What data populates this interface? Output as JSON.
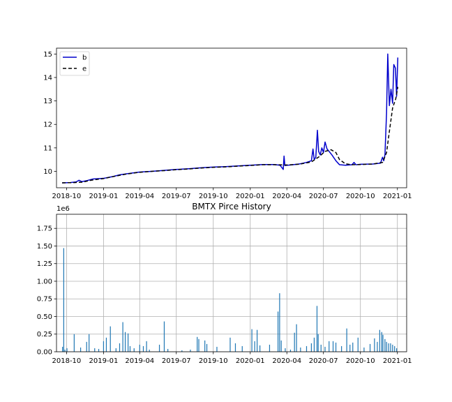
{
  "chart_data": [
    {
      "type": "line",
      "title": "",
      "xlabel": "",
      "ylabel": "",
      "x_ticks": [
        "2018-10",
        "2019-01",
        "2019-04",
        "2019-07",
        "2019-10",
        "2020-01",
        "2020-04",
        "2020-07",
        "2020-10",
        "2021-01"
      ],
      "y_ticks": [
        "10",
        "11",
        "12",
        "13",
        "14",
        "15"
      ],
      "ylim": [
        9.3,
        15.25
      ],
      "xlim": [
        "2018-09-06",
        "2021-01-24"
      ],
      "grid": false,
      "legend_position": "upper-left",
      "series": [
        {
          "name": "b",
          "color": "#0000cc",
          "style": "solid",
          "points": [
            [
              "2018-09-20",
              9.51
            ],
            [
              "2018-10-10",
              9.52
            ],
            [
              "2018-10-25",
              9.55
            ],
            [
              "2018-11-01",
              9.62
            ],
            [
              "2018-11-08",
              9.56
            ],
            [
              "2018-11-20",
              9.6
            ],
            [
              "2018-12-05",
              9.67
            ],
            [
              "2019-01-01",
              9.7
            ],
            [
              "2019-01-25",
              9.78
            ],
            [
              "2019-02-10",
              9.85
            ],
            [
              "2019-03-01",
              9.9
            ],
            [
              "2019-04-01",
              9.97
            ],
            [
              "2019-05-01",
              10.0
            ],
            [
              "2019-06-01",
              10.04
            ],
            [
              "2019-07-01",
              10.08
            ],
            [
              "2019-08-01",
              10.11
            ],
            [
              "2019-09-01",
              10.15
            ],
            [
              "2019-10-01",
              10.18
            ],
            [
              "2019-11-01",
              10.2
            ],
            [
              "2019-12-01",
              10.23
            ],
            [
              "2020-01-01",
              10.26
            ],
            [
              "2020-02-01",
              10.29
            ],
            [
              "2020-03-01",
              10.29
            ],
            [
              "2020-03-15",
              10.26
            ],
            [
              "2020-03-20",
              10.15
            ],
            [
              "2020-03-23",
              10.08
            ],
            [
              "2020-03-25",
              10.65
            ],
            [
              "2020-03-27",
              10.25
            ],
            [
              "2020-04-10",
              10.27
            ],
            [
              "2020-05-01",
              10.31
            ],
            [
              "2020-05-20",
              10.38
            ],
            [
              "2020-06-01",
              10.45
            ],
            [
              "2020-06-05",
              10.95
            ],
            [
              "2020-06-08",
              10.5
            ],
            [
              "2020-06-12",
              10.6
            ],
            [
              "2020-06-16",
              11.75
            ],
            [
              "2020-06-19",
              10.85
            ],
            [
              "2020-06-23",
              10.7
            ],
            [
              "2020-06-27",
              11.0
            ],
            [
              "2020-07-01",
              10.8
            ],
            [
              "2020-07-05",
              11.25
            ],
            [
              "2020-07-10",
              10.95
            ],
            [
              "2020-07-15",
              10.85
            ],
            [
              "2020-07-22",
              10.7
            ],
            [
              "2020-08-01",
              10.45
            ],
            [
              "2020-08-10",
              10.28
            ],
            [
              "2020-08-25",
              10.26
            ],
            [
              "2020-09-10",
              10.28
            ],
            [
              "2020-09-15",
              10.38
            ],
            [
              "2020-09-20",
              10.28
            ],
            [
              "2020-10-01",
              10.3
            ],
            [
              "2020-11-01",
              10.31
            ],
            [
              "2020-11-20",
              10.35
            ],
            [
              "2020-11-25",
              10.6
            ],
            [
              "2020-11-28",
              10.45
            ],
            [
              "2020-12-01",
              10.7
            ],
            [
              "2020-12-05",
              12.5
            ],
            [
              "2020-12-08",
              15.0
            ],
            [
              "2020-12-12",
              12.8
            ],
            [
              "2020-12-16",
              13.5
            ],
            [
              "2020-12-20",
              12.9
            ],
            [
              "2020-12-23",
              14.55
            ],
            [
              "2020-12-27",
              14.4
            ],
            [
              "2020-12-30",
              13.2
            ],
            [
              "2021-01-02",
              14.85
            ]
          ]
        },
        {
          "name": "e",
          "color": "#000000",
          "style": "dashed",
          "points": [
            [
              "2018-09-20",
              9.51
            ],
            [
              "2018-10-20",
              9.52
            ],
            [
              "2018-11-10",
              9.54
            ],
            [
              "2018-12-01",
              9.62
            ],
            [
              "2019-01-01",
              9.69
            ],
            [
              "2019-02-01",
              9.8
            ],
            [
              "2019-03-01",
              9.89
            ],
            [
              "2019-04-01",
              9.96
            ],
            [
              "2019-05-01",
              10.0
            ],
            [
              "2019-06-01",
              10.03
            ],
            [
              "2019-07-01",
              10.07
            ],
            [
              "2019-08-01",
              10.1
            ],
            [
              "2019-09-01",
              10.14
            ],
            [
              "2019-10-01",
              10.17
            ],
            [
              "2019-11-01",
              10.19
            ],
            [
              "2019-12-01",
              10.22
            ],
            [
              "2020-01-01",
              10.25
            ],
            [
              "2020-02-01",
              10.28
            ],
            [
              "2020-03-01",
              10.28
            ],
            [
              "2020-04-01",
              10.27
            ],
            [
              "2020-05-01",
              10.3
            ],
            [
              "2020-06-01",
              10.4
            ],
            [
              "2020-06-20",
              10.62
            ],
            [
              "2020-07-05",
              10.85
            ],
            [
              "2020-07-20",
              10.92
            ],
            [
              "2020-08-01",
              10.8
            ],
            [
              "2020-08-10",
              10.5
            ],
            [
              "2020-08-25",
              10.32
            ],
            [
              "2020-09-10",
              10.28
            ],
            [
              "2020-10-01",
              10.29
            ],
            [
              "2020-11-01",
              10.31
            ],
            [
              "2020-11-25",
              10.38
            ],
            [
              "2020-12-05",
              10.8
            ],
            [
              "2020-12-12",
              11.7
            ],
            [
              "2020-12-20",
              12.7
            ],
            [
              "2020-12-28",
              13.1
            ],
            [
              "2021-01-02",
              13.6
            ]
          ]
        }
      ]
    },
    {
      "type": "bar",
      "title": "BMTX Pirce History",
      "xlabel": "",
      "ylabel": "",
      "y_scale_label": "1e6",
      "x_ticks": [
        "2018-10",
        "2019-01",
        "2019-04",
        "2019-07",
        "2019-10",
        "2020-01",
        "2020-04",
        "2020-07",
        "2020-10",
        "2021-01"
      ],
      "y_ticks": [
        "0.00",
        "0.25",
        "0.50",
        "0.75",
        "1.00",
        "1.25",
        "1.50",
        "1.75"
      ],
      "ylim": [
        0,
        1.95
      ],
      "xlim": [
        "2018-09-06",
        "2021-01-24"
      ],
      "grid": true,
      "bar_color": "#1f77b4",
      "points": [
        [
          "2018-09-21",
          0.07
        ],
        [
          "2018-09-24",
          1.47
        ],
        [
          "2018-09-27",
          0.03
        ],
        [
          "2018-10-02",
          0.05
        ],
        [
          "2018-10-20",
          0.25
        ],
        [
          "2018-11-05",
          0.06
        ],
        [
          "2018-11-20",
          0.14
        ],
        [
          "2018-11-26",
          0.25
        ],
        [
          "2018-12-10",
          0.05
        ],
        [
          "2018-12-20",
          0.04
        ],
        [
          "2019-01-01",
          0.15
        ],
        [
          "2019-01-08",
          0.2
        ],
        [
          "2019-01-18",
          0.36
        ],
        [
          "2019-02-01",
          0.05
        ],
        [
          "2019-02-10",
          0.12
        ],
        [
          "2019-02-18",
          0.42
        ],
        [
          "2019-02-24",
          0.28
        ],
        [
          "2019-03-03",
          0.26
        ],
        [
          "2019-03-08",
          0.08
        ],
        [
          "2019-03-18",
          0.05
        ],
        [
          "2019-04-01",
          0.1
        ],
        [
          "2019-04-10",
          0.08
        ],
        [
          "2019-04-18",
          0.15
        ],
        [
          "2019-04-25",
          0.03
        ],
        [
          "2019-05-20",
          0.1
        ],
        [
          "2019-06-01",
          0.43
        ],
        [
          "2019-06-10",
          0.04
        ],
        [
          "2019-07-15",
          0.02
        ],
        [
          "2019-08-05",
          0.03
        ],
        [
          "2019-08-22",
          0.21
        ],
        [
          "2019-08-26",
          0.18
        ],
        [
          "2019-09-10",
          0.16
        ],
        [
          "2019-09-15",
          0.11
        ],
        [
          "2019-10-10",
          0.07
        ],
        [
          "2019-11-12",
          0.2
        ],
        [
          "2019-11-25",
          0.12
        ],
        [
          "2019-12-12",
          0.08
        ],
        [
          "2020-01-05",
          0.32
        ],
        [
          "2020-01-12",
          0.15
        ],
        [
          "2020-01-18",
          0.31
        ],
        [
          "2020-01-25",
          0.09
        ],
        [
          "2020-02-18",
          0.1
        ],
        [
          "2020-03-10",
          0.57
        ],
        [
          "2020-03-14",
          0.83
        ],
        [
          "2020-03-18",
          0.16
        ],
        [
          "2020-03-28",
          0.05
        ],
        [
          "2020-04-10",
          0.03
        ],
        [
          "2020-04-20",
          0.27
        ],
        [
          "2020-04-25",
          0.39
        ],
        [
          "2020-05-05",
          0.06
        ],
        [
          "2020-05-20",
          0.08
        ],
        [
          "2020-06-01",
          0.12
        ],
        [
          "2020-06-08",
          0.2
        ],
        [
          "2020-06-15",
          0.65
        ],
        [
          "2020-06-18",
          0.25
        ],
        [
          "2020-06-25",
          0.1
        ],
        [
          "2020-07-05",
          0.07
        ],
        [
          "2020-07-15",
          0.15
        ],
        [
          "2020-07-25",
          0.15
        ],
        [
          "2020-08-01",
          0.13
        ],
        [
          "2020-08-15",
          0.08
        ],
        [
          "2020-08-28",
          0.33
        ],
        [
          "2020-09-05",
          0.1
        ],
        [
          "2020-09-12",
          0.13
        ],
        [
          "2020-09-25",
          0.2
        ],
        [
          "2020-10-10",
          0.06
        ],
        [
          "2020-10-25",
          0.11
        ],
        [
          "2020-11-05",
          0.19
        ],
        [
          "2020-11-12",
          0.14
        ],
        [
          "2020-11-18",
          0.31
        ],
        [
          "2020-11-23",
          0.28
        ],
        [
          "2020-11-26",
          0.24
        ],
        [
          "2020-12-01",
          0.18
        ],
        [
          "2020-12-05",
          0.14
        ],
        [
          "2020-12-10",
          0.12
        ],
        [
          "2020-12-15",
          0.12
        ],
        [
          "2020-12-20",
          0.1
        ],
        [
          "2020-12-25",
          0.08
        ],
        [
          "2020-12-30",
          0.05
        ]
      ]
    }
  ]
}
